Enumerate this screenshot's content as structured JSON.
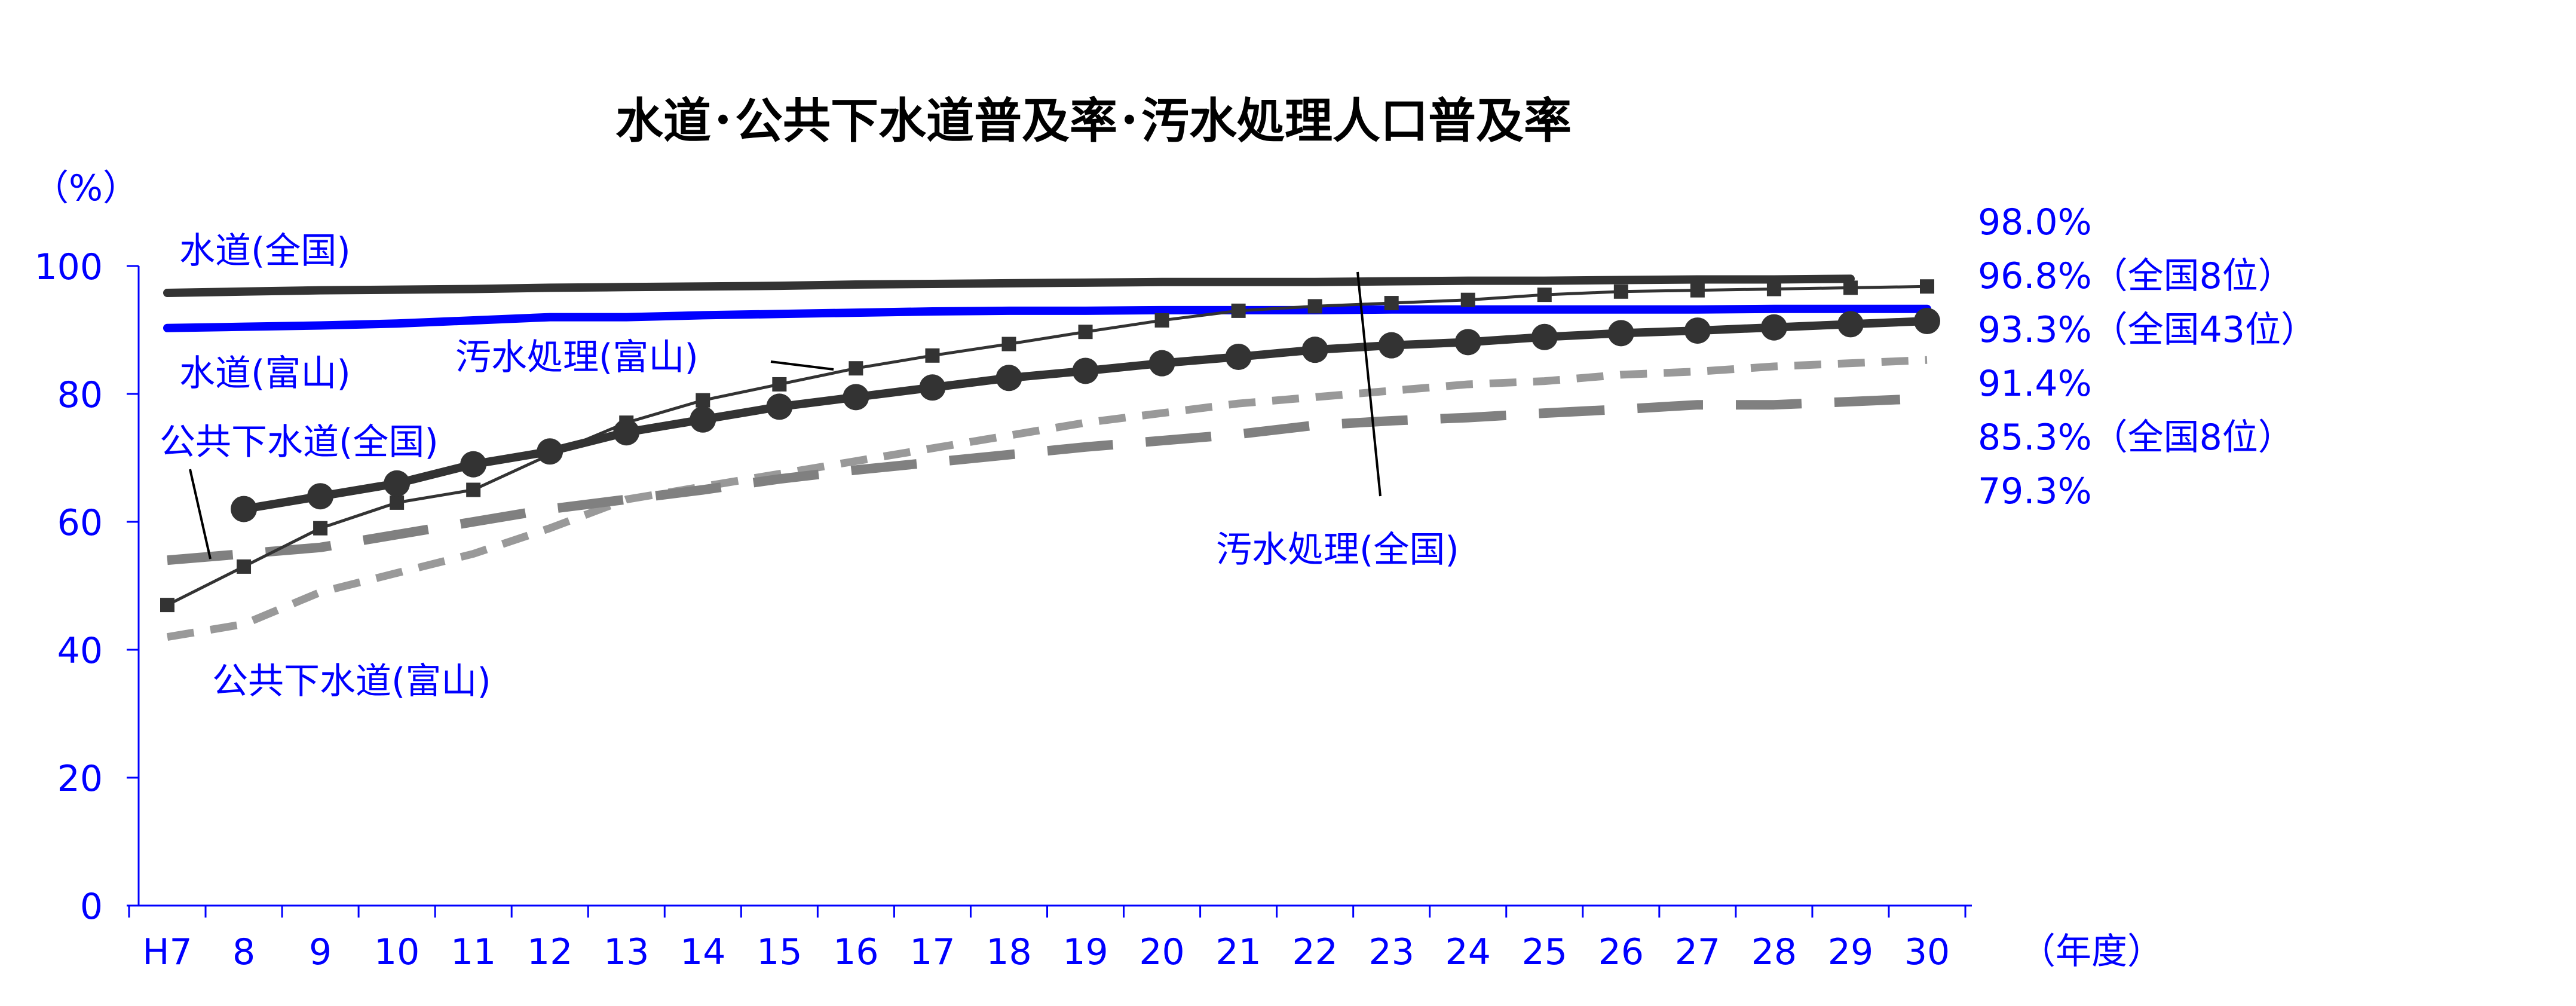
{
  "chart_data": {
    "type": "line",
    "title": "水道･公共下水道普及率･汚水処理人口普及率",
    "ylabel": "（%）",
    "xlabel": "（年度）",
    "ylim": [
      0,
      100
    ],
    "yticks": [
      "0",
      "20",
      "40",
      "60",
      "80",
      "100"
    ],
    "categories": [
      "H7",
      "8",
      "9",
      "10",
      "11",
      "12",
      "13",
      "14",
      "15",
      "16",
      "17",
      "18",
      "19",
      "20",
      "21",
      "22",
      "23",
      "24",
      "25",
      "26",
      "27",
      "28",
      "29",
      "30"
    ],
    "grid": false,
    "legend": "none",
    "series": [
      {
        "name": "水道(全国)",
        "color": "#333333",
        "values": [
          95.8,
          96.0,
          96.2,
          96.3,
          96.4,
          96.6,
          96.7,
          96.8,
          96.9,
          97.1,
          97.2,
          97.3,
          97.4,
          97.5,
          97.5,
          97.5,
          97.6,
          97.7,
          97.7,
          97.8,
          97.9,
          97.9,
          98.0,
          null
        ]
      },
      {
        "name": "水道(富山)",
        "color": "#0000ff",
        "values": [
          90.3,
          90.5,
          90.7,
          91.0,
          91.5,
          92.0,
          92.0,
          92.3,
          92.5,
          92.7,
          92.9,
          93.0,
          93.0,
          93.1,
          93.1,
          93.1,
          93.2,
          93.2,
          93.2,
          93.2,
          93.2,
          93.3,
          93.3,
          93.3
        ]
      },
      {
        "name": "汚水処理(富山)",
        "color": "#333333",
        "values": [
          47.0,
          53.0,
          59.0,
          63.0,
          65.0,
          70.5,
          75.5,
          79.0,
          81.5,
          84.0,
          86.0,
          87.8,
          89.7,
          91.5,
          93.0,
          93.7,
          94.2,
          94.7,
          95.5,
          96.0,
          96.2,
          96.4,
          96.6,
          96.8
        ]
      },
      {
        "name": "汚水処理(全国)",
        "color": "#333333",
        "values": [
          null,
          62.0,
          64.0,
          66.0,
          69.0,
          71.0,
          74.0,
          76.0,
          78.0,
          79.5,
          81.0,
          82.5,
          83.6,
          84.8,
          85.8,
          86.9,
          87.6,
          88.1,
          88.9,
          89.5,
          89.9,
          90.4,
          90.9,
          91.4
        ]
      },
      {
        "name": "公共下水道(全国)",
        "color": "#808080",
        "values": [
          54.0,
          55.0,
          56.0,
          58.0,
          60.0,
          62.0,
          63.5,
          65.0,
          66.7,
          68.1,
          69.3,
          70.5,
          71.7,
          72.7,
          73.7,
          75.1,
          75.8,
          76.3,
          77.0,
          77.6,
          78.3,
          78.3,
          78.8,
          79.3
        ]
      },
      {
        "name": "公共下水道(富山)",
        "color": "#999999",
        "values": [
          42.0,
          44.0,
          49.0,
          52.0,
          55.0,
          59.0,
          63.5,
          65.5,
          67.5,
          69.5,
          71.5,
          73.5,
          75.5,
          77.0,
          78.5,
          79.5,
          80.5,
          81.5,
          82.0,
          83.0,
          83.5,
          84.3,
          84.8,
          85.3
        ]
      }
    ],
    "right_annotations": [
      "98.0%",
      "96.8%（全国8位）",
      "93.3%（全国43位）",
      "91.4%",
      "85.3%（全国8位）",
      "79.3%"
    ],
    "in_chart_labels": [
      "水道(全国)",
      "水道(富山)",
      "汚水処理(富山)",
      "公共下水道(全国)",
      "公共下水道(富山)",
      "汚水処理(全国)"
    ]
  }
}
